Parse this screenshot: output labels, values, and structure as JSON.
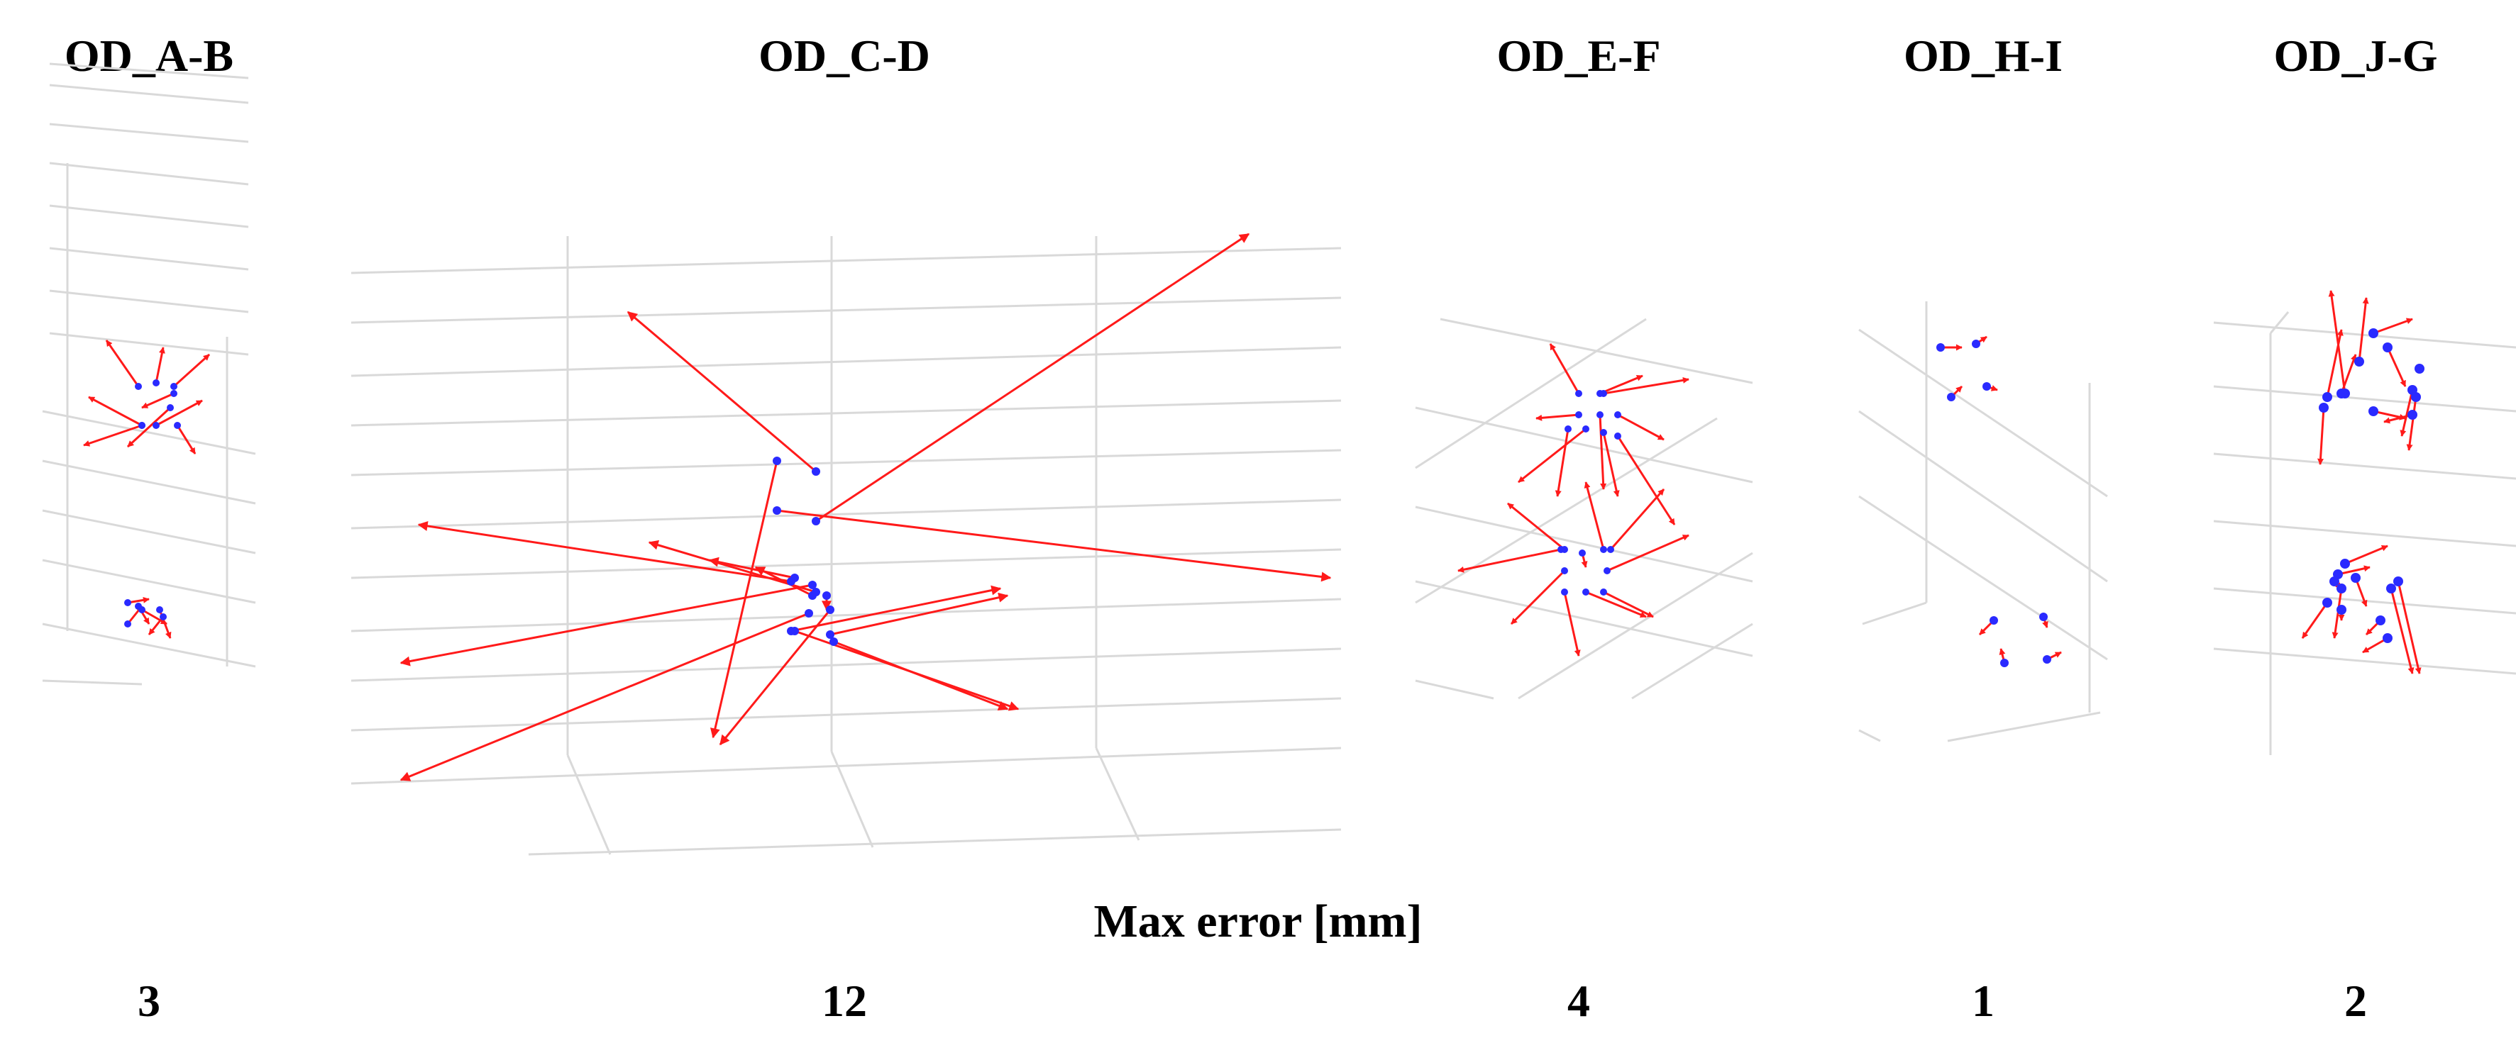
{
  "panels": [
    {
      "id": "ab",
      "title": "OD_A-B",
      "max_error": "3"
    },
    {
      "id": "cd",
      "title": "OD_C-D",
      "max_error": "12"
    },
    {
      "id": "ef",
      "title": "OD_E-F",
      "max_error": "4"
    },
    {
      "id": "hi",
      "title": "OD_H-I",
      "max_error": "1"
    },
    {
      "id": "jg",
      "title": "OD_J-G",
      "max_error": "2"
    }
  ],
  "max_error_label": "Max error [mm]",
  "colors": {
    "error_vector": "#ff1a1a",
    "marker_point": "#2a2aff",
    "grid": "#d9d9d9"
  }
}
